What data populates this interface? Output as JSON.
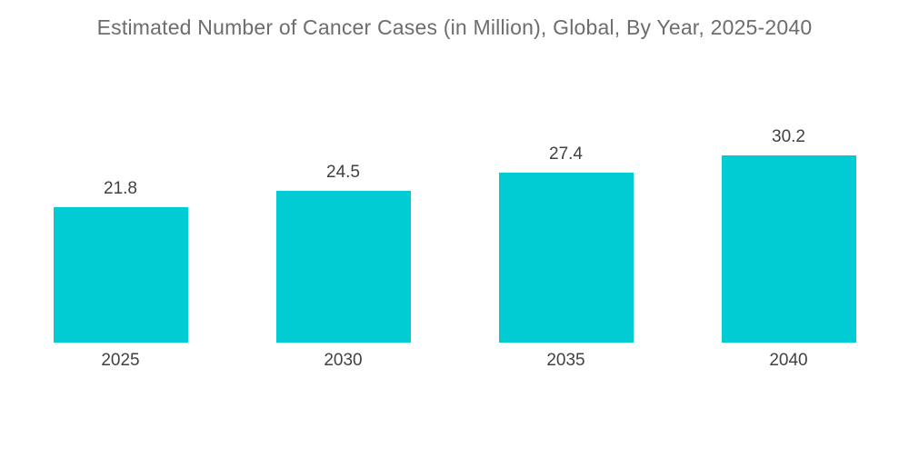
{
  "chart_data": {
    "type": "bar",
    "title": "Estimated Number of Cancer Cases (in Million), Global, By Year, 2025-2040",
    "categories": [
      "2025",
      "2030",
      "2035",
      "2040"
    ],
    "values": [
      21.8,
      24.5,
      27.4,
      30.2
    ],
    "xlabel": "",
    "ylabel": "",
    "data_labels": true,
    "grid": false,
    "legend": "none",
    "axes_visible": false,
    "bar_color": "#02CCD3",
    "label_color": "#414141",
    "title_color": "#6d6d6d",
    "background_color": "#ffffff"
  }
}
